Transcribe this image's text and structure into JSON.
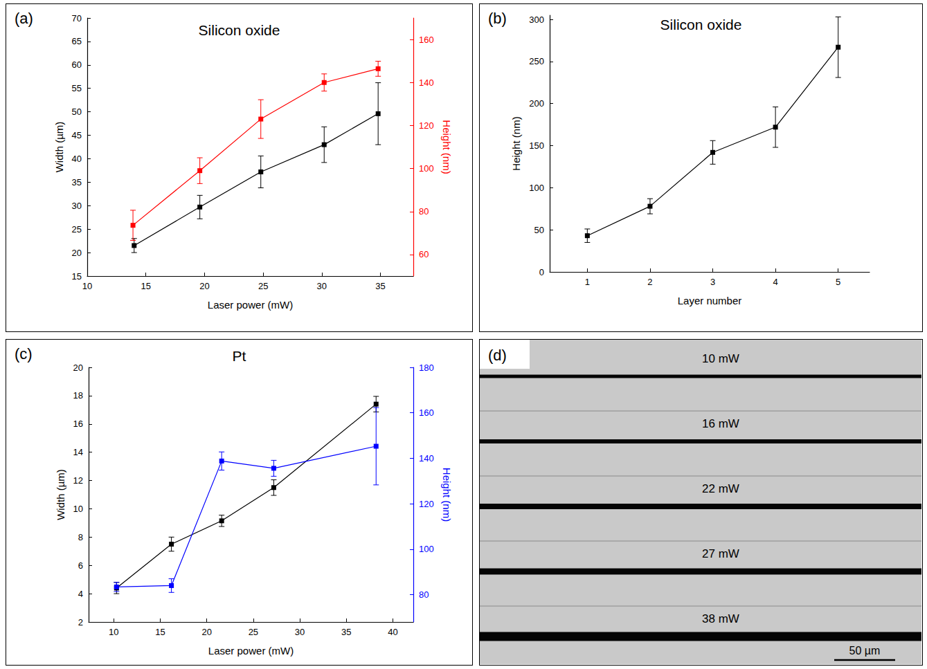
{
  "chart_data": [
    {
      "panel": "(a)",
      "type": "line",
      "title": "Silicon oxide",
      "x_label": "Laser power (mW)",
      "y_label": "Width (µm)",
      "y2_label": "Height (nm)",
      "xlim": [
        10,
        37.8
      ],
      "xticks": [
        10,
        15,
        20,
        25,
        30,
        35
      ],
      "ylim": [
        15,
        70
      ],
      "yticks": [
        15,
        20,
        25,
        30,
        35,
        40,
        45,
        50,
        55,
        60,
        65,
        70
      ],
      "y2lim": [
        50,
        170
      ],
      "y2ticks": [
        60,
        80,
        100,
        120,
        140,
        160
      ],
      "grid": false,
      "marker": "square",
      "series": [
        {
          "axis": "y",
          "color": "#000000",
          "x": [
            14,
            19.6,
            24.8,
            30.2,
            34.8
          ],
          "values": [
            21.5,
            29.7,
            37.2,
            43,
            49.6
          ],
          "errors": [
            1.5,
            2.5,
            3.4,
            3.8,
            6.6
          ]
        },
        {
          "axis": "y2",
          "color": "#ff0000",
          "x": [
            13.9,
            19.6,
            24.8,
            30.2,
            34.8
          ],
          "values": [
            73.6,
            99,
            123,
            140,
            146.4
          ],
          "errors": [
            7,
            6,
            9,
            4,
            3.5
          ]
        }
      ]
    },
    {
      "panel": "(b)",
      "type": "line",
      "title": "Silicon oxide",
      "x_label": "Layer number",
      "y_label": "Height (nm)",
      "xlim": [
        0.4,
        5.5
      ],
      "xticks": [
        1,
        2,
        3,
        4,
        5
      ],
      "ylim": [
        0,
        305
      ],
      "yticks": [
        0,
        50,
        100,
        150,
        200,
        250,
        300
      ],
      "grid": false,
      "marker": "square",
      "series": [
        {
          "axis": "y",
          "color": "#000000",
          "x": [
            1,
            2,
            3,
            4,
            5
          ],
          "values": [
            43,
            78,
            142,
            172,
            267
          ],
          "errors": [
            8,
            9,
            14,
            24,
            36
          ]
        }
      ]
    },
    {
      "panel": "(c)",
      "type": "line",
      "title": "Pt",
      "x_label": "Laser power (mW)",
      "y_label": "Width (µm)",
      "y2_label": "Height (nm)",
      "xlim": [
        7.3,
        42.2
      ],
      "xticks": [
        10,
        15,
        20,
        25,
        30,
        35,
        40
      ],
      "ylim": [
        2,
        20
      ],
      "yticks": [
        2,
        4,
        6,
        8,
        10,
        12,
        14,
        16,
        18,
        20
      ],
      "y2lim": [
        68,
        180
      ],
      "y2ticks": [
        80,
        100,
        120,
        140,
        160,
        180
      ],
      "grid": false,
      "marker": "square",
      "series": [
        {
          "axis": "y",
          "color": "#000000",
          "x": [
            10.3,
            16.2,
            21.6,
            27.2,
            38.2
          ],
          "values": [
            4.4,
            7.5,
            9.15,
            11.5,
            17.4
          ],
          "errors": [
            0.4,
            0.5,
            0.4,
            0.55,
            0.55
          ]
        },
        {
          "axis": "y2",
          "color": "#0000ff",
          "x": [
            10.3,
            16.2,
            21.6,
            27.2,
            38.2
          ],
          "values": [
            83.4,
            84,
            138.8,
            135.6,
            145.3
          ],
          "errors": [
            2,
            3,
            4,
            3.5,
            17
          ]
        }
      ]
    },
    {
      "panel": "(d)",
      "type": "image",
      "lines": [
        {
          "label": "10 mW",
          "width_um": 2.8
        },
        {
          "label": "16 mW",
          "width_um": 3.4
        },
        {
          "label": "22 mW",
          "width_um": 4.5
        },
        {
          "label": "27 mW",
          "width_um": 5.1
        },
        {
          "label": "38 mW",
          "width_um": 7.4
        }
      ],
      "scale_bar": {
        "label": "50 µm",
        "length_um": 50
      }
    }
  ]
}
